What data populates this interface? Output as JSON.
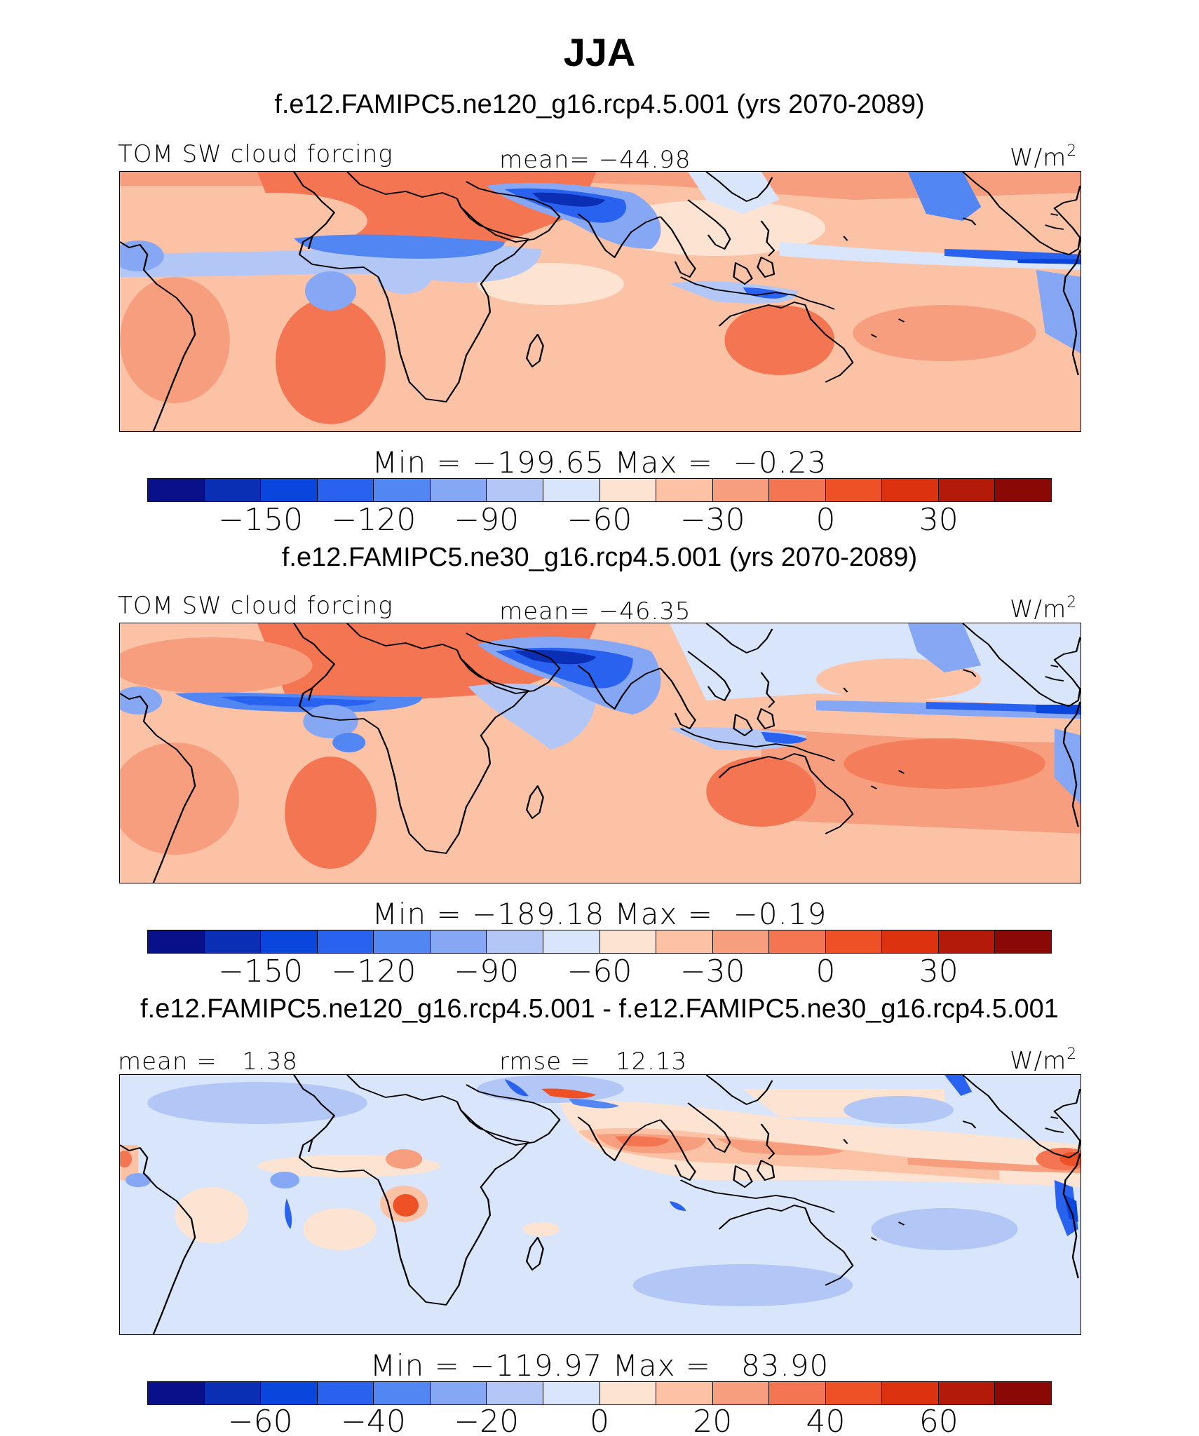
{
  "title": "JJA",
  "panels": [
    {
      "case_title": "f.e12.FAMIPC5.ne120_g16.rcp4.5.001 (yrs 2070-2089)",
      "left_label": "TOM SW cloud forcing",
      "center_label": "mean= −44.98",
      "units": "W/m",
      "units_sup": "2",
      "minmax": "Min = −199.65 Max =  −0.23",
      "colorbar": {
        "colors": [
          "#08108a",
          "#0a2fb4",
          "#0a45dc",
          "#2a62f0",
          "#5286f2",
          "#86a8f4",
          "#b2c7f6",
          "#d8e5fa",
          "#fde4d2",
          "#fbc2a6",
          "#f79e7e",
          "#f37552",
          "#ef5127",
          "#dd3210",
          "#b31a09",
          "#8a0805"
        ],
        "tick_labels": [
          "−150",
          "−120",
          "−90",
          "−60",
          "−30",
          "0",
          "30"
        ]
      }
    },
    {
      "case_title": "f.e12.FAMIPC5.ne30_g16.rcp4.5.001 (yrs 2070-2089)",
      "left_label": "TOM SW cloud forcing",
      "center_label": "mean= −46.35",
      "units": "W/m",
      "units_sup": "2",
      "minmax": "Min = −189.18 Max =  −0.19",
      "colorbar": {
        "colors": [
          "#08108a",
          "#0a2fb4",
          "#0a45dc",
          "#2a62f0",
          "#5286f2",
          "#86a8f4",
          "#b2c7f6",
          "#d8e5fa",
          "#fde4d2",
          "#fbc2a6",
          "#f79e7e",
          "#f37552",
          "#ef5127",
          "#dd3210",
          "#b31a09",
          "#8a0805"
        ],
        "tick_labels": [
          "−150",
          "−120",
          "−90",
          "−60",
          "−30",
          "0",
          "30"
        ]
      }
    },
    {
      "case_title": "f.e12.FAMIPC5.ne120_g16.rcp4.5.001 - f.e12.FAMIPC5.ne30_g16.rcp4.5.001",
      "left_label": "mean =   1.38",
      "center_label": "rmse =   12.13",
      "units": "W/m",
      "units_sup": "2",
      "minmax": "Min = −119.97 Max =   83.90",
      "colorbar": {
        "colors": [
          "#08108a",
          "#0a2fb4",
          "#0a45dc",
          "#2a62f0",
          "#5286f2",
          "#86a8f4",
          "#b2c7f6",
          "#d8e5fa",
          "#fde4d2",
          "#fbc2a6",
          "#f79e7e",
          "#f37552",
          "#ef5127",
          "#dd3210",
          "#b31a09",
          "#8a0805"
        ],
        "tick_labels": [
          "−60",
          "−40",
          "−20",
          "0",
          "20",
          "40",
          "60"
        ]
      }
    }
  ]
}
